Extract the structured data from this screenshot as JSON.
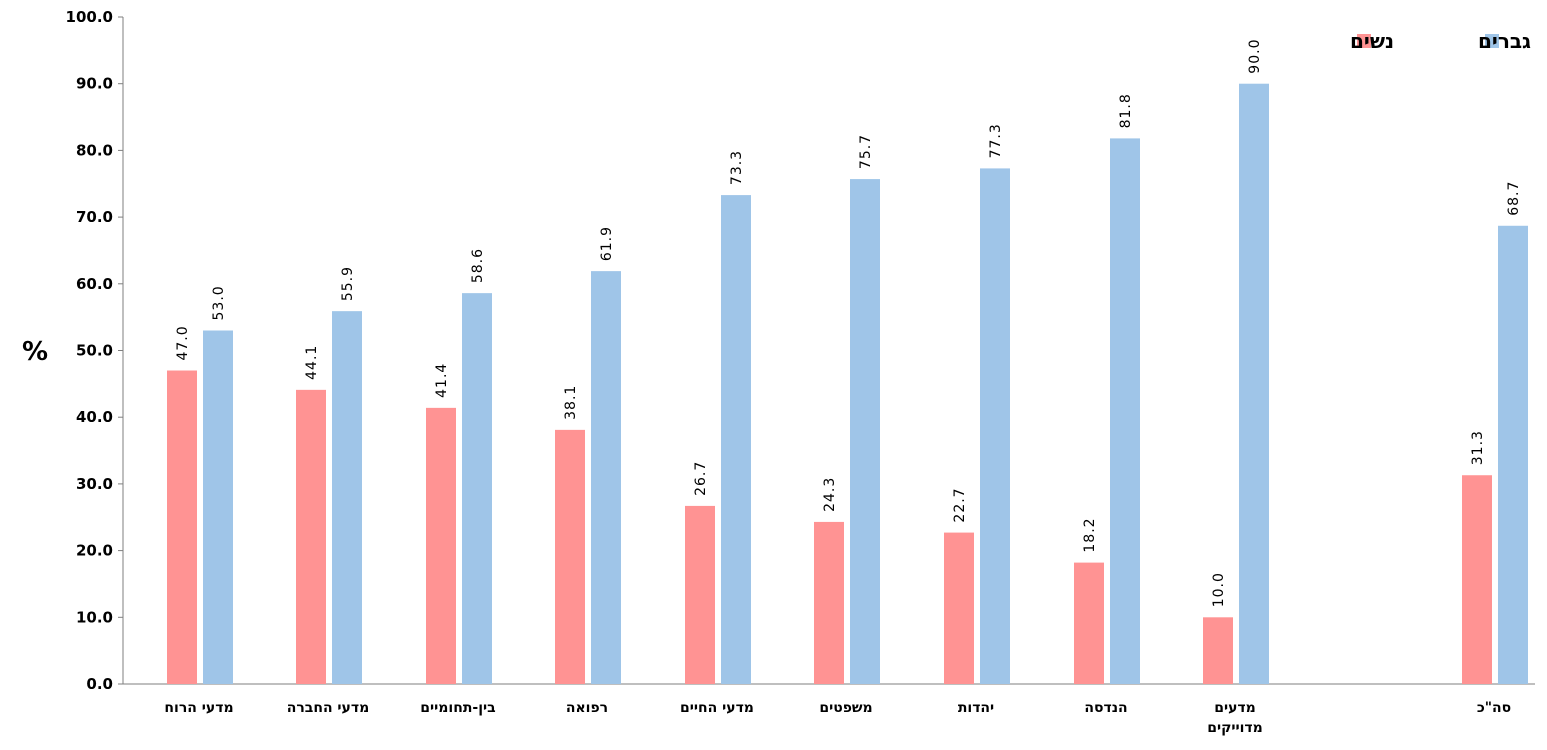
{
  "chart_data": {
    "type": "bar",
    "title": "",
    "xlabel": "",
    "ylabel": "%",
    "ylim": [
      0,
      100
    ],
    "yticks": [
      "0.0",
      "10.0",
      "20.0",
      "30.0",
      "40.0",
      "50.0",
      "60.0",
      "70.0",
      "80.0",
      "90.0",
      "100.0"
    ],
    "grid": false,
    "legend_position": "top-right",
    "categories": [
      [
        "מדעי הרוח"
      ],
      [
        "מדעי החברה"
      ],
      [
        "בין-תחומיים"
      ],
      [
        "רפואה"
      ],
      [
        "מדעי החיים"
      ],
      [
        "משפטים"
      ],
      [
        "יהדות"
      ],
      [
        "הנדסה"
      ],
      [
        "מדעים",
        "מדוייקים"
      ],
      [
        "סה\"כ"
      ]
    ],
    "series": [
      {
        "name": "נשים",
        "color": "#ff9393",
        "values": [
          47.0,
          44.1,
          41.4,
          38.1,
          26.7,
          24.3,
          22.7,
          18.2,
          10.0,
          31.3
        ],
        "labels": [
          "47.0",
          "44.1",
          "41.4",
          "38.1",
          "26.7",
          "24.3",
          "22.7",
          "18.2",
          "10.0",
          "31.3"
        ]
      },
      {
        "name": "גברים",
        "color": "#9fc5e8",
        "values": [
          53.0,
          55.9,
          58.6,
          61.9,
          73.3,
          75.7,
          77.3,
          81.8,
          90.0,
          68.7
        ],
        "labels": [
          "53.0",
          "55.9",
          "58.6",
          "61.9",
          "73.3",
          "75.7",
          "77.3",
          "81.8",
          "90.0",
          "68.7"
        ]
      }
    ],
    "legend_order": [
      "גברים",
      "נשים"
    ]
  }
}
